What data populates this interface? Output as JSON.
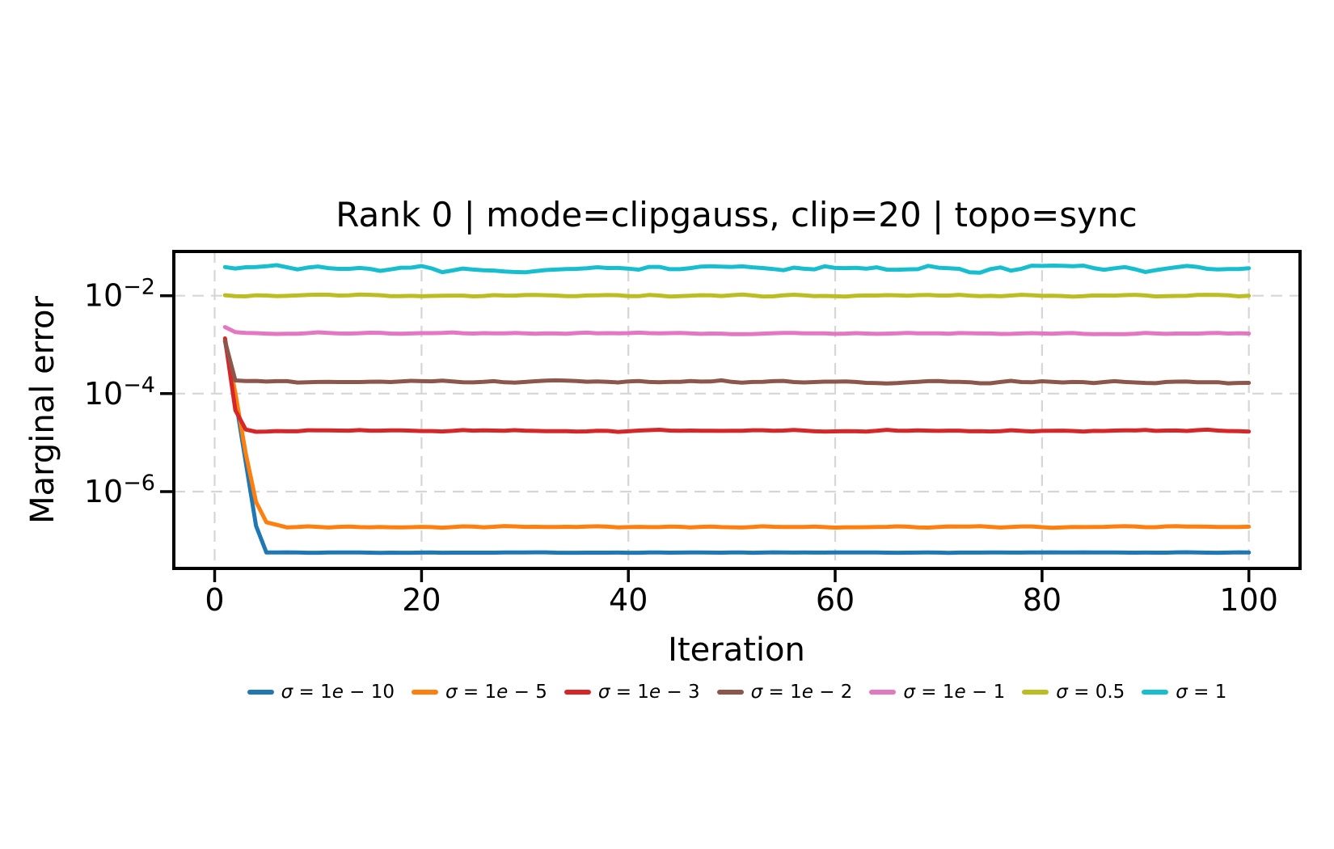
{
  "chart_data": {
    "type": "line",
    "title": "Rank 0 | mode=clipgauss, clip=20 | topo=sync",
    "xlabel": "Iteration",
    "ylabel": "Marginal error",
    "grid": true,
    "legend_position": "below-axis-horizontal",
    "x_range": [
      1,
      100
    ],
    "x_axis": {
      "scale": "linear",
      "xlim": [
        -3.95,
        104.95
      ],
      "ticks": [
        {
          "label": "0",
          "value": 0
        },
        {
          "label": "20",
          "value": 20
        },
        {
          "label": "40",
          "value": 40
        },
        {
          "label": "60",
          "value": 60
        },
        {
          "label": "80",
          "value": 80
        },
        {
          "label": "100",
          "value": 100
        }
      ]
    },
    "y_axis": {
      "scale": "log",
      "ylim": [
        2.7e-08,
        0.08
      ],
      "ticks": [
        {
          "label": "10⁻²",
          "base": "10",
          "exp": "−2",
          "value": 0.01
        },
        {
          "label": "10⁻⁴",
          "base": "10",
          "exp": "−4",
          "value": 0.0001
        },
        {
          "label": "10⁻⁶",
          "base": "10",
          "exp": "−6",
          "value": 1e-06
        }
      ]
    },
    "series": [
      {
        "name": "σ = 1e − 10",
        "color": "#1f77b4",
        "steady_value": 5.7e-08,
        "noise_decades": 0.004,
        "keypoints": [
          [
            1,
            0.0012
          ],
          [
            2,
            8e-05
          ],
          [
            3,
            4e-06
          ],
          [
            4,
            2e-07
          ],
          [
            5,
            5.7e-08
          ],
          [
            100,
            5.7e-08
          ]
        ]
      },
      {
        "name": "σ = 1e − 5",
        "color": "#ff7f0e",
        "steady_value": 1.9e-07,
        "noise_decades": 0.012,
        "keypoints": [
          [
            1,
            0.0013
          ],
          [
            2,
            0.0001
          ],
          [
            3,
            6e-06
          ],
          [
            4,
            6e-07
          ],
          [
            5,
            2.3e-07
          ],
          [
            7,
            1.9e-07
          ],
          [
            100,
            1.9e-07
          ]
        ]
      },
      {
        "name": "σ = 1e − 3",
        "color": "#d62728",
        "steady_value": 1.75e-05,
        "noise_decades": 0.015,
        "keypoints": [
          [
            1,
            0.0013
          ],
          [
            2,
            4.5e-05
          ],
          [
            3,
            1.9e-05
          ],
          [
            4,
            1.75e-05
          ],
          [
            100,
            1.75e-05
          ]
        ]
      },
      {
        "name": "σ = 1e − 2",
        "color": "#8c564b",
        "steady_value": 0.00017,
        "noise_decades": 0.02,
        "keypoints": [
          [
            1,
            0.00115
          ],
          [
            2,
            0.00018
          ],
          [
            100,
            0.00017
          ]
        ]
      },
      {
        "name": "σ = 1e − 1",
        "color": "#e377c2",
        "steady_value": 0.0017,
        "noise_decades": 0.012,
        "keypoints": [
          [
            1,
            0.0023
          ],
          [
            2,
            0.0018
          ],
          [
            3,
            0.00172
          ],
          [
            100,
            0.0017
          ]
        ]
      },
      {
        "name": "σ = 0.5",
        "color": "#bcbd22",
        "steady_value": 0.01,
        "noise_decades": 0.016,
        "keypoints": [
          [
            1,
            0.01
          ],
          [
            100,
            0.01
          ]
        ]
      },
      {
        "name": "σ = 1",
        "color": "#17becf",
        "steady_value": 0.035,
        "noise_decades": 0.05,
        "keypoints": [
          [
            1,
            0.036
          ],
          [
            100,
            0.035
          ]
        ]
      }
    ]
  },
  "colors": {
    "background": "#ffffff",
    "spine": "#000000",
    "grid": "#d6d6d6",
    "text": "#000000"
  }
}
